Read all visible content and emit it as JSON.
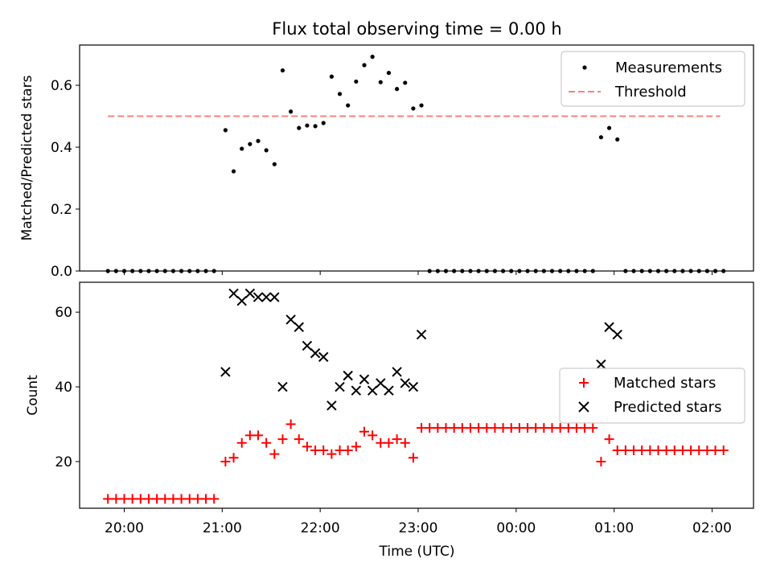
{
  "title": "Flux total observing time = 0.00 h",
  "chart_data": [
    {
      "type": "scatter",
      "panel": "top",
      "ylabel": "Matched/Predicted stars",
      "xlabel": "",
      "ylim": [
        0.0,
        0.73
      ],
      "yticks": [
        0.0,
        0.2,
        0.4,
        0.6
      ],
      "ytick_labels": [
        "0.0",
        "0.2",
        "0.4",
        "0.6"
      ],
      "legend_position": "top-right",
      "series": [
        {
          "name": "Measurements",
          "kind": "points",
          "color": "#000000",
          "points": [
            [
              "19:50",
              0
            ],
            [
              "19:55",
              0
            ],
            [
              "20:00",
              0
            ],
            [
              "20:05",
              0
            ],
            [
              "20:10",
              0
            ],
            [
              "20:15",
              0
            ],
            [
              "20:20",
              0
            ],
            [
              "20:25",
              0
            ],
            [
              "20:30",
              0
            ],
            [
              "20:35",
              0
            ],
            [
              "20:40",
              0
            ],
            [
              "20:45",
              0
            ],
            [
              "20:50",
              0
            ],
            [
              "20:55",
              0
            ],
            [
              "21:02",
              0.455
            ],
            [
              "21:07",
              0.322
            ],
            [
              "21:12",
              0.395
            ],
            [
              "21:17",
              0.41
            ],
            [
              "21:22",
              0.42
            ],
            [
              "21:27",
              0.39
            ],
            [
              "21:32",
              0.345
            ],
            [
              "21:37",
              0.648
            ],
            [
              "21:42",
              0.515
            ],
            [
              "21:47",
              0.462
            ],
            [
              "21:52",
              0.47
            ],
            [
              "21:57",
              0.468
            ],
            [
              "22:02",
              0.478
            ],
            [
              "22:07",
              0.628
            ],
            [
              "22:12",
              0.572
            ],
            [
              "22:17",
              0.535
            ],
            [
              "22:22",
              0.612
            ],
            [
              "22:27",
              0.665
            ],
            [
              "22:32",
              0.692
            ],
            [
              "22:37",
              0.61
            ],
            [
              "22:42",
              0.64
            ],
            [
              "22:47",
              0.588
            ],
            [
              "22:52",
              0.608
            ],
            [
              "22:57",
              0.525
            ],
            [
              "23:02",
              0.535
            ],
            [
              "23:07",
              0
            ],
            [
              "23:12",
              0
            ],
            [
              "23:17",
              0
            ],
            [
              "23:22",
              0
            ],
            [
              "23:27",
              0
            ],
            [
              "23:32",
              0
            ],
            [
              "23:37",
              0
            ],
            [
              "23:42",
              0
            ],
            [
              "23:47",
              0
            ],
            [
              "23:52",
              0
            ],
            [
              "23:57",
              0
            ],
            [
              "00:02",
              0
            ],
            [
              "00:07",
              0
            ],
            [
              "00:12",
              0
            ],
            [
              "00:17",
              0
            ],
            [
              "00:22",
              0
            ],
            [
              "00:27",
              0
            ],
            [
              "00:32",
              0
            ],
            [
              "00:37",
              0
            ],
            [
              "00:42",
              0
            ],
            [
              "00:47",
              0
            ],
            [
              "00:52",
              0.432
            ],
            [
              "00:57",
              0.462
            ],
            [
              "01:02",
              0.425
            ],
            [
              "01:07",
              0
            ],
            [
              "01:12",
              0
            ],
            [
              "01:17",
              0
            ],
            [
              "01:22",
              0
            ],
            [
              "01:27",
              0
            ],
            [
              "01:32",
              0
            ],
            [
              "01:37",
              0
            ],
            [
              "01:42",
              0
            ],
            [
              "01:47",
              0
            ],
            [
              "01:52",
              0
            ],
            [
              "01:57",
              0
            ],
            [
              "02:02",
              0
            ],
            [
              "02:07",
              0
            ]
          ]
        },
        {
          "name": "Threshold",
          "kind": "dashed-line",
          "color": "#ff7f7f",
          "points": [
            [
              "19:50",
              0.5
            ],
            [
              "02:05",
              0.5
            ]
          ]
        }
      ]
    },
    {
      "type": "scatter",
      "panel": "bottom",
      "ylabel": "Count",
      "xlabel": "Time (UTC)",
      "ylim": [
        7.5,
        68
      ],
      "yticks": [
        20,
        40,
        60
      ],
      "ytick_labels": [
        "20",
        "40",
        "60"
      ],
      "xticks": [
        "20:00",
        "21:00",
        "22:00",
        "23:00",
        "00:00",
        "01:00",
        "02:00"
      ],
      "legend_position": "center-right",
      "series": [
        {
          "name": "Matched stars",
          "marker": "plus",
          "color": "#ff0000",
          "points": [
            [
              "19:50",
              10
            ],
            [
              "19:55",
              10
            ],
            [
              "20:00",
              10
            ],
            [
              "20:05",
              10
            ],
            [
              "20:10",
              10
            ],
            [
              "20:15",
              10
            ],
            [
              "20:20",
              10
            ],
            [
              "20:25",
              10
            ],
            [
              "20:30",
              10
            ],
            [
              "20:35",
              10
            ],
            [
              "20:40",
              10
            ],
            [
              "20:45",
              10
            ],
            [
              "20:50",
              10
            ],
            [
              "20:55",
              10
            ],
            [
              "21:02",
              20
            ],
            [
              "21:07",
              21
            ],
            [
              "21:12",
              25
            ],
            [
              "21:17",
              27
            ],
            [
              "21:22",
              27
            ],
            [
              "21:27",
              25
            ],
            [
              "21:32",
              22
            ],
            [
              "21:37",
              26
            ],
            [
              "21:42",
              30
            ],
            [
              "21:47",
              26
            ],
            [
              "21:52",
              24
            ],
            [
              "21:57",
              23
            ],
            [
              "22:02",
              23
            ],
            [
              "22:07",
              22
            ],
            [
              "22:12",
              23
            ],
            [
              "22:17",
              23
            ],
            [
              "22:22",
              24
            ],
            [
              "22:27",
              28
            ],
            [
              "22:32",
              27
            ],
            [
              "22:37",
              25
            ],
            [
              "22:42",
              25
            ],
            [
              "22:47",
              26
            ],
            [
              "22:52",
              25
            ],
            [
              "22:57",
              21
            ],
            [
              "23:02",
              29
            ],
            [
              "23:07",
              29
            ],
            [
              "23:12",
              29
            ],
            [
              "23:17",
              29
            ],
            [
              "23:22",
              29
            ],
            [
              "23:27",
              29
            ],
            [
              "23:32",
              29
            ],
            [
              "23:37",
              29
            ],
            [
              "23:42",
              29
            ],
            [
              "23:47",
              29
            ],
            [
              "23:52",
              29
            ],
            [
              "23:57",
              29
            ],
            [
              "00:02",
              29
            ],
            [
              "00:07",
              29
            ],
            [
              "00:12",
              29
            ],
            [
              "00:17",
              29
            ],
            [
              "00:22",
              29
            ],
            [
              "00:27",
              29
            ],
            [
              "00:32",
              29
            ],
            [
              "00:37",
              29
            ],
            [
              "00:42",
              29
            ],
            [
              "00:47",
              29
            ],
            [
              "00:52",
              20
            ],
            [
              "00:57",
              26
            ],
            [
              "01:02",
              23
            ],
            [
              "01:07",
              23
            ],
            [
              "01:12",
              23
            ],
            [
              "01:17",
              23
            ],
            [
              "01:22",
              23
            ],
            [
              "01:27",
              23
            ],
            [
              "01:32",
              23
            ],
            [
              "01:37",
              23
            ],
            [
              "01:42",
              23
            ],
            [
              "01:47",
              23
            ],
            [
              "01:52",
              23
            ],
            [
              "01:57",
              23
            ],
            [
              "02:02",
              23
            ],
            [
              "02:07",
              23
            ]
          ]
        },
        {
          "name": "Predicted stars",
          "marker": "x",
          "color": "#000000",
          "points": [
            [
              "21:02",
              44
            ],
            [
              "21:07",
              65
            ],
            [
              "21:12",
              63
            ],
            [
              "21:17",
              65
            ],
            [
              "21:22",
              64
            ],
            [
              "21:27",
              64
            ],
            [
              "21:32",
              64
            ],
            [
              "21:37",
              40
            ],
            [
              "21:42",
              58
            ],
            [
              "21:47",
              56
            ],
            [
              "21:52",
              51
            ],
            [
              "21:57",
              49
            ],
            [
              "22:02",
              48
            ],
            [
              "22:07",
              35
            ],
            [
              "22:12",
              40
            ],
            [
              "22:17",
              43
            ],
            [
              "22:22",
              39
            ],
            [
              "22:27",
              42
            ],
            [
              "22:32",
              39
            ],
            [
              "22:37",
              41
            ],
            [
              "22:42",
              39
            ],
            [
              "22:47",
              44
            ],
            [
              "22:52",
              41
            ],
            [
              "22:57",
              40
            ],
            [
              "23:02",
              54
            ],
            [
              "00:52",
              46
            ],
            [
              "00:57",
              56
            ],
            [
              "01:02",
              54
            ]
          ]
        }
      ]
    }
  ]
}
